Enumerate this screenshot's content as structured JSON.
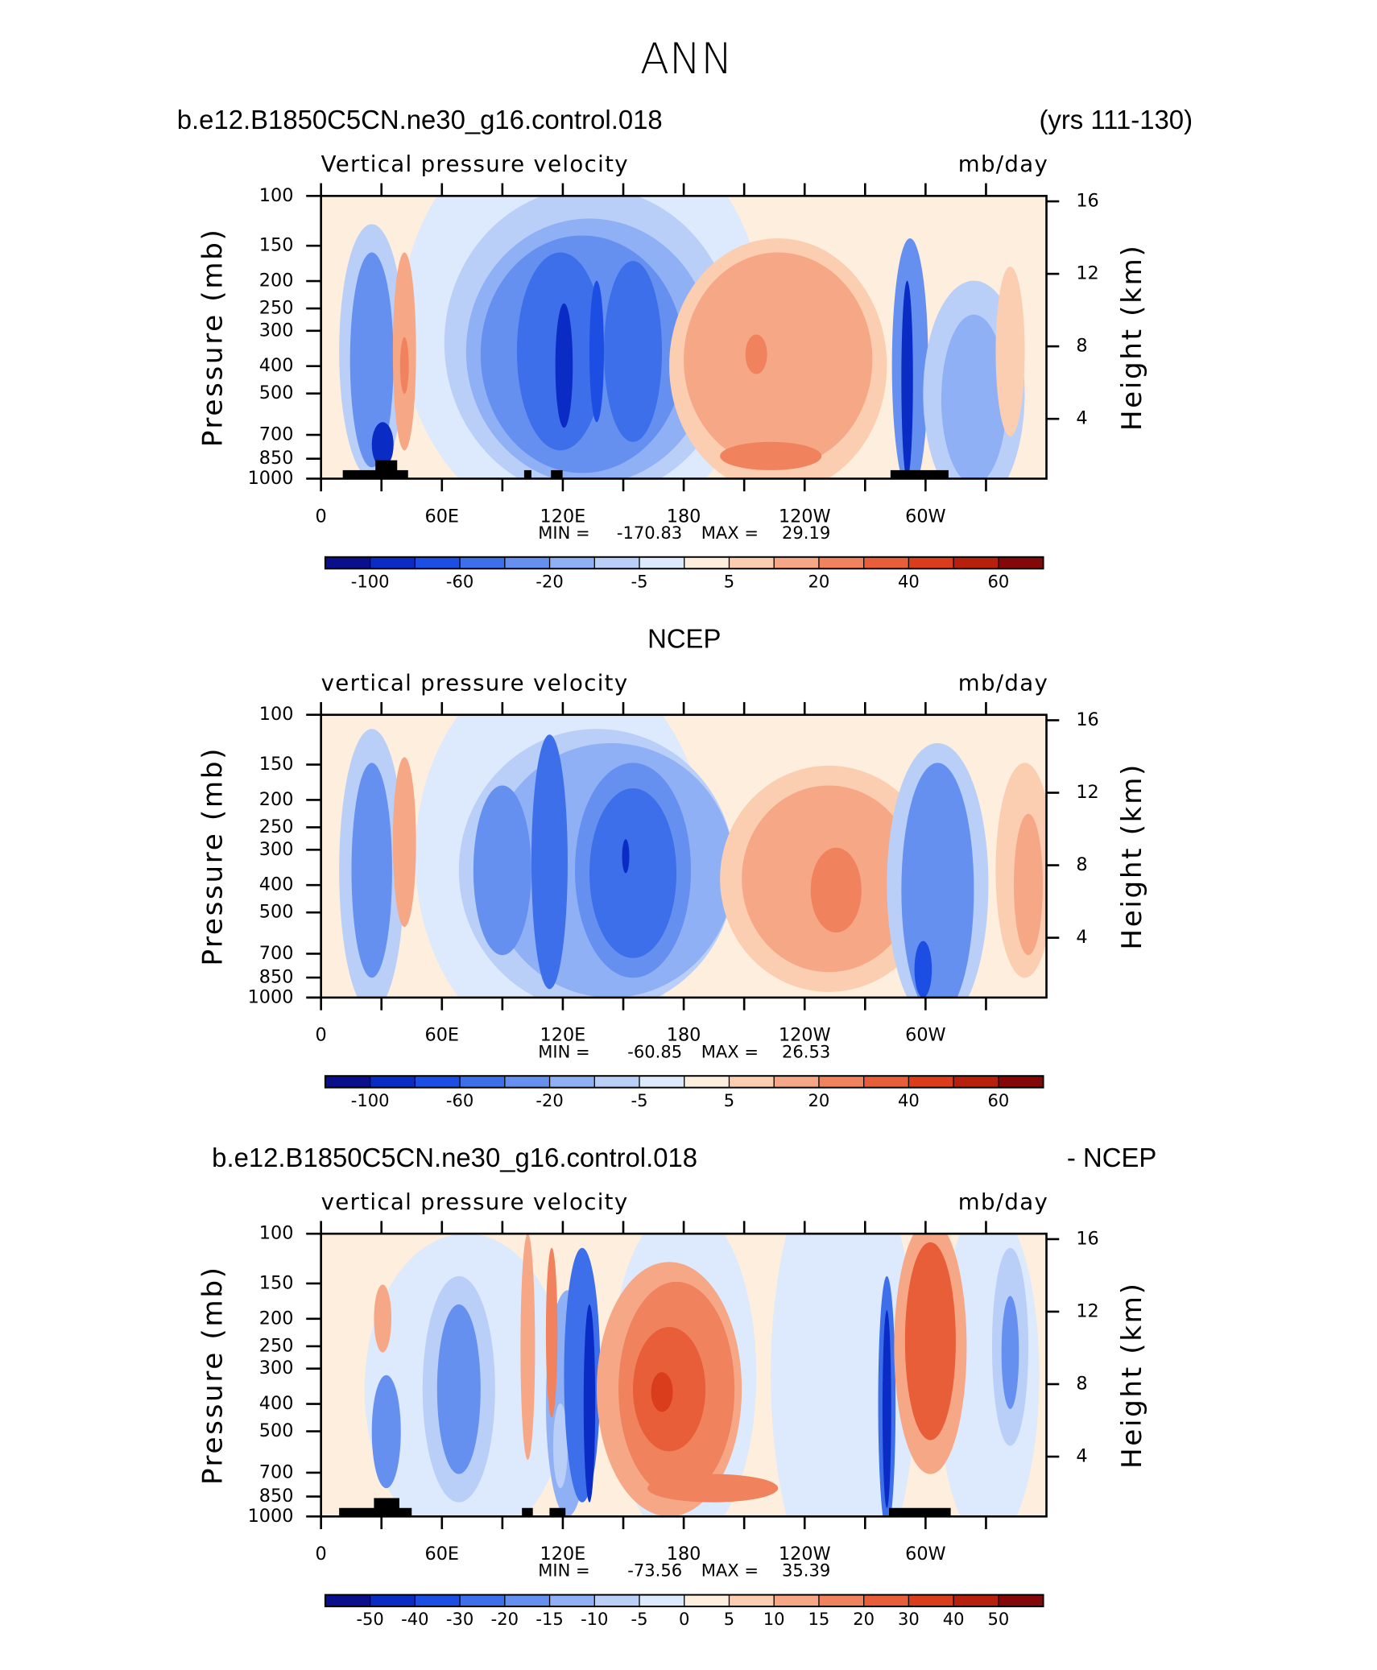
{
  "title": "ANN",
  "chart_data": [
    {
      "type": "contour",
      "header_left": "b.e12.B1850C5CN.ne30_g16.control.018",
      "header_right": "(yrs 111-130)",
      "subtitle_left": "Vertical pressure velocity",
      "subtitle_right": "mb/day",
      "ylabel": "Pressure (mb)",
      "y2label": "Height (km)",
      "ylim": [
        1000,
        100
      ],
      "log_y": true,
      "yticks": [
        100,
        150,
        200,
        250,
        300,
        400,
        500,
        700,
        850,
        1000
      ],
      "y2lim": [
        0.7,
        16.3
      ],
      "y2ticks": [
        4,
        8,
        12,
        16
      ],
      "xlim": [
        0,
        360
      ],
      "xticks": [
        0,
        {
          "value": 60,
          "label": "60E"
        },
        {
          "value": 120,
          "label": "120E"
        },
        180,
        {
          "value": 240,
          "label": "120W"
        },
        {
          "value": 300,
          "label": "60W"
        }
      ],
      "xminor_ticks": [
        30,
        90,
        150,
        210,
        270,
        330
      ],
      "min_label": "MIN =",
      "min": -170.83,
      "max_label": "MAX =",
      "max": 29.19,
      "colorbar_labels": [
        -100,
        -60,
        -20,
        -5,
        5,
        20,
        40,
        60
      ],
      "colorbar_colors": [
        "#0a0f8c",
        "#0a2cc4",
        "#1c4ee3",
        "#3d6fea",
        "#6590f0",
        "#8fb0f4",
        "#b9cff8",
        "#dde9fc",
        "#fdeedd",
        "#fbcdb1",
        "#f6a786",
        "#f0835e",
        "#e85e38",
        "#d93d1c",
        "#b7200d",
        "#850808"
      ]
    },
    {
      "type": "contour",
      "header_center": "NCEP",
      "subtitle_left": "vertical pressure velocity",
      "subtitle_right": "mb/day",
      "ylabel": "Pressure (mb)",
      "y2label": "Height (km)",
      "ylim": [
        1000,
        100
      ],
      "log_y": true,
      "yticks": [
        100,
        150,
        200,
        250,
        300,
        400,
        500,
        700,
        850,
        1000
      ],
      "y2lim": [
        0.7,
        16.3
      ],
      "y2ticks": [
        4,
        8,
        12,
        16
      ],
      "xlim": [
        0,
        360
      ],
      "xticks": [
        0,
        {
          "value": 60,
          "label": "60E"
        },
        {
          "value": 120,
          "label": "120E"
        },
        180,
        {
          "value": 240,
          "label": "120W"
        },
        {
          "value": 300,
          "label": "60W"
        }
      ],
      "xminor_ticks": [
        30,
        90,
        150,
        210,
        270,
        330
      ],
      "min_label": "MIN =",
      "min": -60.85,
      "max_label": "MAX =",
      "max": 26.53,
      "colorbar_labels": [
        -100,
        -60,
        -20,
        -5,
        5,
        20,
        40,
        60
      ],
      "colorbar_colors": [
        "#0a0f8c",
        "#0a2cc4",
        "#1c4ee3",
        "#3d6fea",
        "#6590f0",
        "#8fb0f4",
        "#b9cff8",
        "#dde9fc",
        "#fdeedd",
        "#fbcdb1",
        "#f6a786",
        "#f0835e",
        "#e85e38",
        "#d93d1c",
        "#b7200d",
        "#850808"
      ]
    },
    {
      "type": "contour",
      "header_left": "b.e12.B1850C5CN.ne30_g16.control.018",
      "header_right": "- NCEP",
      "subtitle_left": "vertical pressure velocity",
      "subtitle_right": "mb/day",
      "ylabel": "Pressure (mb)",
      "y2label": "Height (km)",
      "ylim": [
        1000,
        100
      ],
      "log_y": true,
      "yticks": [
        100,
        150,
        200,
        250,
        300,
        400,
        500,
        700,
        850,
        1000
      ],
      "y2lim": [
        0.7,
        16.3
      ],
      "y2ticks": [
        4,
        8,
        12,
        16
      ],
      "xlim": [
        0,
        360
      ],
      "xticks": [
        0,
        {
          "value": 60,
          "label": "60E"
        },
        {
          "value": 120,
          "label": "120E"
        },
        180,
        {
          "value": 240,
          "label": "120W"
        },
        {
          "value": 300,
          "label": "60W"
        }
      ],
      "xminor_ticks": [
        30,
        90,
        150,
        210,
        270,
        330
      ],
      "min_label": "MIN =",
      "min": -73.56,
      "max_label": "MAX =",
      "max": 35.39,
      "colorbar_labels": [
        -50,
        -40,
        -30,
        -20,
        -15,
        -10,
        -5,
        0,
        5,
        10,
        15,
        20,
        30,
        40,
        50
      ],
      "colorbar_colors": [
        "#0a0f8c",
        "#0a2cc4",
        "#1c4ee3",
        "#3d6fea",
        "#6590f0",
        "#8fb0f4",
        "#b9cff8",
        "#dde9fc",
        "#fdeedd",
        "#fbcdb1",
        "#f6a786",
        "#f0835e",
        "#e85e38",
        "#d93d1c",
        "#b7200d",
        "#850808"
      ]
    }
  ]
}
